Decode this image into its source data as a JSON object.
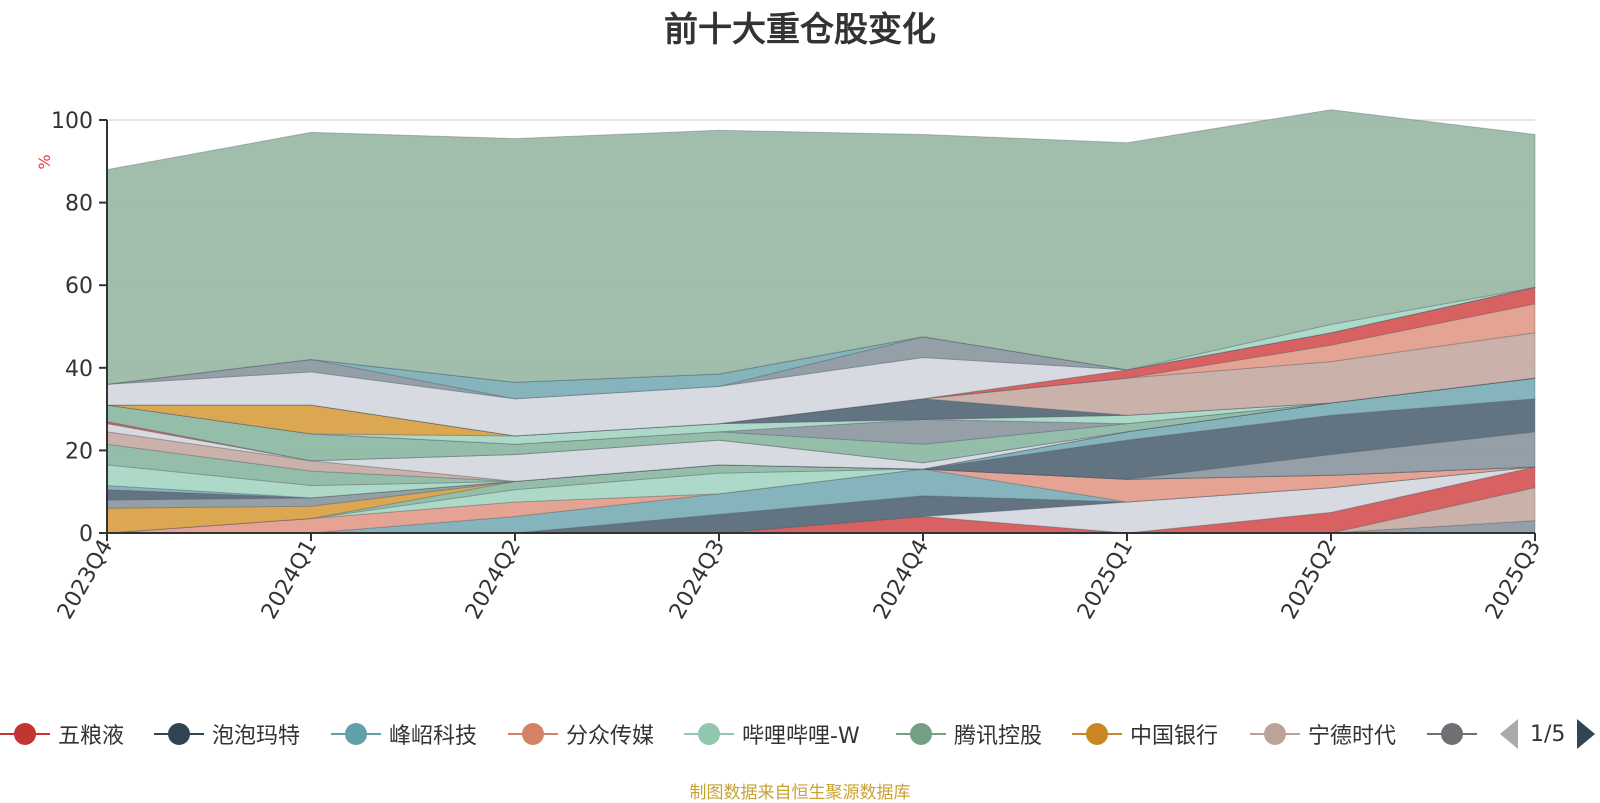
{
  "title": "前十大重仓股变化",
  "source": "制图数据来自恒生聚源数据库",
  "legend_pager": "1/5",
  "chart_data": {
    "type": "area",
    "stacked": true,
    "categories": [
      "2023Q4",
      "2024Q1",
      "2024Q2",
      "2024Q3",
      "2024Q4",
      "2025Q1",
      "2025Q2",
      "2025Q3"
    ],
    "ylabel": "%",
    "ylim": [
      0,
      100
    ],
    "yticks": [
      0,
      20,
      40,
      60,
      80,
      100
    ],
    "grid": true,
    "series": [
      {
        "name": "",
        "color": "#8e9aa3",
        "values": [
          0,
          0,
          0,
          0,
          0,
          0,
          0,
          3
        ]
      },
      {
        "name": "宁德时代",
        "color": "#c7ada4",
        "values": [
          0,
          0,
          0,
          0,
          0,
          0,
          0,
          8
        ]
      },
      {
        "name": "五粮液",
        "color": "#d6595a",
        "values": [
          0,
          0,
          0,
          0,
          4,
          0,
          5,
          5
        ]
      },
      {
        "name": "",
        "color": "#d5d9df",
        "values": [
          0,
          0,
          0,
          0,
          0,
          7.5,
          6,
          0
        ]
      },
      {
        "name": "泡泡玛特",
        "color": "#5a6d7b",
        "values": [
          0,
          0,
          0,
          4.5,
          5,
          0,
          0,
          0
        ]
      },
      {
        "name": "峰岹科技",
        "color": "#7fb0b9",
        "values": [
          0,
          0,
          4,
          5,
          6.5,
          0,
          0,
          0
        ]
      },
      {
        "name": "分众传媒",
        "color": "#e39e8d",
        "values": [
          0,
          3.5,
          3.5,
          0,
          0,
          5.5,
          3,
          0
        ]
      },
      {
        "name": "哔哩哔哩-W",
        "color": "#a9d8c5",
        "values": [
          0,
          0,
          3,
          5,
          0,
          0,
          0,
          0
        ]
      },
      {
        "name": "腾讯控股",
        "color": "#8fbba5",
        "values": [
          0,
          0,
          2,
          2,
          0,
          0,
          0,
          0
        ]
      },
      {
        "name": "中国银行",
        "color": "#d9a348",
        "values": [
          6,
          3,
          0,
          0,
          0,
          0,
          0,
          0
        ]
      },
      {
        "name": "",
        "color": "#8e9aa3",
        "values": [
          2,
          2,
          0,
          0,
          0,
          0,
          5,
          8.5
        ]
      },
      {
        "name": "",
        "color": "#5a6d7b",
        "values": [
          2.5,
          0,
          0,
          0,
          0,
          9.5,
          9.5,
          8
        ]
      },
      {
        "name": "",
        "color": "#7fb0b9",
        "values": [
          1,
          0,
          0,
          0,
          0,
          2,
          3,
          5
        ]
      },
      {
        "name": "",
        "color": "#a9d8c5",
        "values": [
          5,
          3,
          0,
          0,
          0,
          0,
          0,
          0
        ]
      },
      {
        "name": "",
        "color": "#8fbba5",
        "values": [
          5,
          3.5,
          0,
          0,
          0,
          0,
          0,
          0
        ]
      },
      {
        "name": "",
        "color": "#c7ada4",
        "values": [
          3,
          2.5,
          0,
          0,
          0,
          0,
          0,
          0
        ]
      },
      {
        "name": "",
        "color": "#d5d9df",
        "values": [
          2,
          0,
          6.5,
          6,
          1.5,
          0,
          0,
          0
        ]
      },
      {
        "name": "",
        "color": "#d6595a",
        "values": [
          0.5,
          0,
          0,
          0,
          0,
          0,
          0,
          0
        ]
      },
      {
        "name": "",
        "color": "#8fbba5",
        "values": [
          4,
          6.5,
          2.5,
          2,
          4.5,
          2,
          0,
          0
        ]
      },
      {
        "name": "",
        "color": "#8e9aa3",
        "values": [
          0,
          0,
          0,
          0,
          6,
          0,
          0,
          0
        ]
      },
      {
        "name": "",
        "color": "#a9d8c5",
        "values": [
          0,
          0,
          2,
          2,
          0,
          2,
          0,
          0
        ]
      },
      {
        "name": "",
        "color": "#d9a348",
        "values": [
          0,
          7,
          0,
          0,
          0,
          0,
          0,
          0
        ]
      },
      {
        "name": "",
        "color": "#5a6d7b",
        "values": [
          0,
          0,
          0,
          0,
          5,
          0,
          0,
          0
        ]
      },
      {
        "name": "",
        "color": "#c7ada4",
        "values": [
          0,
          0,
          0,
          0,
          0,
          9,
          10,
          11
        ]
      },
      {
        "name": "",
        "color": "#e39e8d",
        "values": [
          0,
          0,
          0,
          0,
          0,
          0,
          4,
          7
        ]
      },
      {
        "name": "",
        "color": "#d6595a",
        "values": [
          0,
          0,
          0,
          0,
          0,
          2,
          3,
          4
        ]
      },
      {
        "name": "",
        "color": "#d5d9df",
        "values": [
          5,
          8,
          9,
          9,
          10,
          0,
          0,
          0
        ]
      },
      {
        "name": "",
        "color": "#8e9aa3",
        "values": [
          0,
          3,
          0,
          0,
          5,
          0,
          0,
          0
        ]
      },
      {
        "name": "",
        "color": "#7fb0b9",
        "values": [
          0,
          0,
          4,
          3,
          0,
          0,
          0,
          0
        ]
      },
      {
        "name": "",
        "color": "#a9d8c5",
        "values": [
          0,
          0,
          0,
          0,
          0,
          0,
          2,
          0
        ]
      },
      {
        "name": "",
        "color": "#9cb9a6",
        "values": [
          52,
          55,
          59,
          59,
          49,
          55,
          52,
          37
        ]
      }
    ]
  },
  "legend": [
    {
      "label": "五粮液",
      "color": "#c23531"
    },
    {
      "label": "泡泡玛特",
      "color": "#2f4554"
    },
    {
      "label": "峰岹科技",
      "color": "#61a0a8"
    },
    {
      "label": "分众传媒",
      "color": "#d48265"
    },
    {
      "label": "哔哩哔哩-W",
      "color": "#91c7ae"
    },
    {
      "label": "腾讯控股",
      "color": "#749f83"
    },
    {
      "label": "中国银行",
      "color": "#ca8622"
    },
    {
      "label": "宁德时代",
      "color": "#bda29a"
    },
    {
      "label": "",
      "color": "#6e7074"
    }
  ]
}
